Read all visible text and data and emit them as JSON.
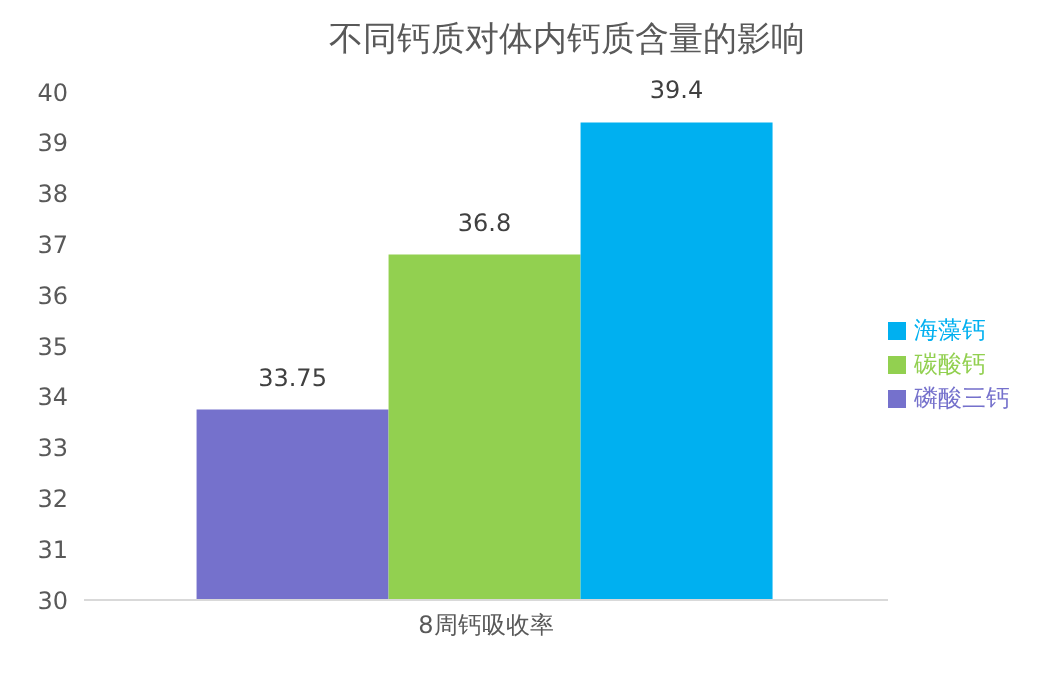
{
  "chart_data": {
    "type": "bar",
    "title": "不同钙质对体内钙质含量的影响",
    "categories": [
      "8周钙吸收率"
    ],
    "series": [
      {
        "name": "磷酸三钙",
        "color": "#7571cc",
        "values": [
          33.75
        ]
      },
      {
        "name": "碳酸钙",
        "color": "#92d050",
        "values": [
          36.8
        ]
      },
      {
        "name": "海藻钙",
        "color": "#00b0f0",
        "values": [
          39.4
        ]
      }
    ],
    "ylim": [
      30,
      40
    ],
    "yticks": [
      30,
      31,
      32,
      33,
      34,
      35,
      36,
      37,
      38,
      39,
      40
    ],
    "grid": false,
    "legend": "right",
    "data_labels": true
  }
}
